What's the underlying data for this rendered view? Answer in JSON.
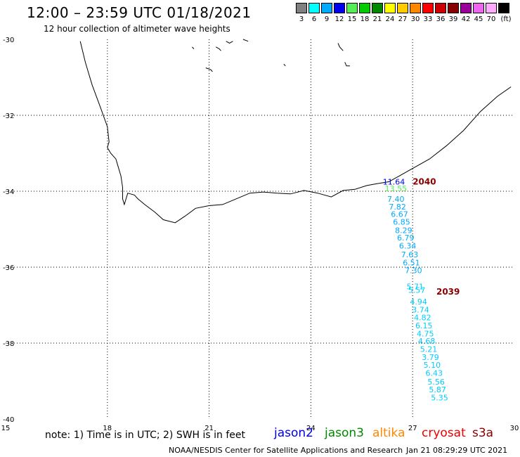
{
  "header": {
    "title": "12:00 – 23:59 UTC 01/18/2021",
    "subtitle": "12 hour collection of altimeter wave heights"
  },
  "color_scale": {
    "unit": "(ft)",
    "bins": [
      {
        "label": "3",
        "color": "#808080"
      },
      {
        "label": "6",
        "color": "#00ffff"
      },
      {
        "label": "9",
        "color": "#00aaff"
      },
      {
        "label": "12",
        "color": "#0000ee"
      },
      {
        "label": "15",
        "color": "#55ee55"
      },
      {
        "label": "18",
        "color": "#00cc00"
      },
      {
        "label": "21",
        "color": "#008800"
      },
      {
        "label": "24",
        "color": "#ffff00"
      },
      {
        "label": "27",
        "color": "#ffcc00"
      },
      {
        "label": "30",
        "color": "#ff8800"
      },
      {
        "label": "33",
        "color": "#ff0000"
      },
      {
        "label": "36",
        "color": "#cc0000"
      },
      {
        "label": "39",
        "color": "#880000"
      },
      {
        "label": "42",
        "color": "#990099"
      },
      {
        "label": "45",
        "color": "#ee66ee"
      },
      {
        "label": "70",
        "color": "#ffaaff"
      },
      {
        "label": "",
        "color": "#000000"
      }
    ]
  },
  "map": {
    "lon_labels": [
      "15",
      "18",
      "21",
      "24",
      "27",
      "30"
    ],
    "lat_labels": [
      "-30",
      "-32",
      "-34",
      "-36",
      "-38",
      "-40"
    ],
    "grid": true,
    "pass_labels": [
      {
        "text": "2040",
        "lon": 27.0,
        "lat": -33.82,
        "color": "#880000"
      },
      {
        "text": "2039",
        "lon": 27.7,
        "lat": -36.72,
        "color": "#880000"
      }
    ],
    "observations": [
      {
        "text": "11.64",
        "lon": 26.12,
        "lat": -33.82,
        "color": "#0000ee"
      },
      {
        "text": "13.55",
        "lon": 26.18,
        "lat": -34.0,
        "color": "#55ee55"
      },
      {
        "text": "7.40",
        "lon": 26.25,
        "lat": -34.28,
        "color": "#00aaff"
      },
      {
        "text": "7.82",
        "lon": 26.3,
        "lat": -34.48,
        "color": "#00aaff"
      },
      {
        "text": "6.67",
        "lon": 26.36,
        "lat": -34.68,
        "color": "#00aaff"
      },
      {
        "text": "6.85",
        "lon": 26.42,
        "lat": -34.88,
        "color": "#00aaff"
      },
      {
        "text": "8.29",
        "lon": 26.48,
        "lat": -35.1,
        "color": "#00aaff"
      },
      {
        "text": "6.79",
        "lon": 26.54,
        "lat": -35.3,
        "color": "#00aaff"
      },
      {
        "text": "6.34",
        "lon": 26.6,
        "lat": -35.51,
        "color": "#00aaff"
      },
      {
        "text": "7.63",
        "lon": 26.66,
        "lat": -35.74,
        "color": "#00aaff"
      },
      {
        "text": "6.51",
        "lon": 26.71,
        "lat": -35.95,
        "color": "#00aaff"
      },
      {
        "text": "7.30",
        "lon": 26.77,
        "lat": -36.16,
        "color": "#00aaff"
      },
      {
        "text": "5.71",
        "lon": 26.82,
        "lat": -36.58,
        "color": "#00ccff"
      },
      {
        "text": "5.57",
        "lon": 26.87,
        "lat": -36.68,
        "color": "#00ccff"
      },
      {
        "text": "4.94",
        "lon": 26.92,
        "lat": -36.98,
        "color": "#00ccff"
      },
      {
        "text": "3.74",
        "lon": 26.98,
        "lat": -37.19,
        "color": "#00ccff"
      },
      {
        "text": "4.82",
        "lon": 27.04,
        "lat": -37.4,
        "color": "#00ccff"
      },
      {
        "text": "6.15",
        "lon": 27.08,
        "lat": -37.61,
        "color": "#00ccff"
      },
      {
        "text": "4.75",
        "lon": 27.12,
        "lat": -37.82,
        "color": "#00ccff"
      },
      {
        "text": "4.68",
        "lon": 27.16,
        "lat": -38.02,
        "color": "#00ccff"
      },
      {
        "text": "5.21",
        "lon": 27.22,
        "lat": -38.23,
        "color": "#00ccff"
      },
      {
        "text": "3.79",
        "lon": 27.27,
        "lat": -38.44,
        "color": "#00ccff"
      },
      {
        "text": "5.10",
        "lon": 27.32,
        "lat": -38.65,
        "color": "#00ccff"
      },
      {
        "text": "6.43",
        "lon": 27.38,
        "lat": -38.86,
        "color": "#00ccff"
      },
      {
        "text": "5.56",
        "lon": 27.44,
        "lat": -39.09,
        "color": "#00ccff"
      },
      {
        "text": "5.87",
        "lon": 27.48,
        "lat": -39.3,
        "color": "#00ccff"
      },
      {
        "text": "5.35",
        "lon": 27.54,
        "lat": -39.51,
        "color": "#00ccff"
      }
    ],
    "coastline": [
      [
        17.2,
        -30.05
      ],
      [
        17.35,
        -30.6
      ],
      [
        17.55,
        -31.2
      ],
      [
        17.8,
        -31.8
      ],
      [
        18.0,
        -32.3
      ],
      [
        18.05,
        -32.7
      ],
      [
        18.0,
        -32.85
      ],
      [
        18.1,
        -33.0
      ],
      [
        18.25,
        -33.15
      ],
      [
        18.3,
        -33.3
      ],
      [
        18.4,
        -33.6
      ],
      [
        18.45,
        -33.9
      ],
      [
        18.45,
        -34.2
      ],
      [
        18.5,
        -34.35
      ],
      [
        18.6,
        -34.05
      ],
      [
        18.8,
        -34.1
      ],
      [
        18.9,
        -34.2
      ],
      [
        19.1,
        -34.35
      ],
      [
        19.4,
        -34.55
      ],
      [
        19.65,
        -34.75
      ],
      [
        20.0,
        -34.83
      ],
      [
        20.3,
        -34.65
      ],
      [
        20.6,
        -34.45
      ],
      [
        21.0,
        -34.38
      ],
      [
        21.4,
        -34.35
      ],
      [
        21.8,
        -34.2
      ],
      [
        22.2,
        -34.05
      ],
      [
        22.6,
        -34.02
      ],
      [
        23.0,
        -34.05
      ],
      [
        23.4,
        -34.07
      ],
      [
        23.8,
        -33.98
      ],
      [
        24.2,
        -34.05
      ],
      [
        24.6,
        -34.15
      ],
      [
        24.95,
        -33.98
      ],
      [
        25.3,
        -33.95
      ],
      [
        25.65,
        -33.85
      ],
      [
        25.95,
        -33.8
      ],
      [
        26.3,
        -33.75
      ],
      [
        26.6,
        -33.6
      ],
      [
        27.0,
        -33.4
      ],
      [
        27.5,
        -33.15
      ],
      [
        28.0,
        -32.8
      ],
      [
        28.5,
        -32.4
      ],
      [
        29.0,
        -31.9
      ],
      [
        29.5,
        -31.5
      ],
      [
        29.9,
        -31.25
      ]
    ],
    "islands": [
      [
        [
          20.5,
          -30.2
        ],
        [
          20.55,
          -30.25
        ]
      ],
      [
        [
          21.2,
          -30.2
        ],
        [
          21.3,
          -30.25
        ],
        [
          21.35,
          -30.3
        ]
      ],
      [
        [
          21.5,
          -30.05
        ],
        [
          21.6,
          -30.1
        ],
        [
          21.7,
          -30.05
        ]
      ],
      [
        [
          22.0,
          -30.0
        ],
        [
          22.15,
          -30.05
        ]
      ],
      [
        [
          24.8,
          -30.1
        ],
        [
          24.85,
          -30.2
        ],
        [
          24.95,
          -30.3
        ]
      ],
      [
        [
          25.0,
          -30.6
        ],
        [
          25.05,
          -30.7
        ],
        [
          25.15,
          -30.7
        ]
      ],
      [
        [
          20.9,
          -30.75
        ],
        [
          21.05,
          -30.8
        ],
        [
          21.1,
          -30.85
        ]
      ],
      [
        [
          23.2,
          -30.65
        ],
        [
          23.25,
          -30.7
        ]
      ]
    ]
  },
  "footer": {
    "note": "note: 1) Time is in UTC; 2) SWH is in feet",
    "legend": [
      {
        "label": "jason2",
        "color": "#0000ee"
      },
      {
        "label": "jason3",
        "color": "#008800"
      },
      {
        "label": "altika",
        "color": "#ff8800"
      },
      {
        "label": "cryosat",
        "color": "#ee0000"
      },
      {
        "label": "s3a",
        "color": "#880000"
      }
    ],
    "credit": "NOAA/NESDIS Center for Satellite Applications and Research",
    "timestamp": "Jan 21 08:29:29 UTC 2021"
  }
}
